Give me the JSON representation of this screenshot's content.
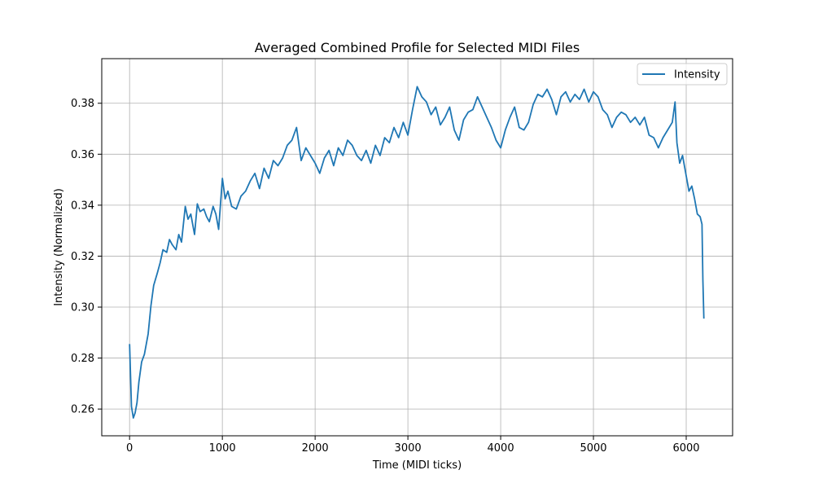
{
  "chart_data": {
    "type": "line",
    "title": "Averaged Combined Profile for Selected MIDI Files",
    "xlabel": "Time (MIDI ticks)",
    "ylabel": "Intensity (Normalized)",
    "xlim": [
      -300,
      6500
    ],
    "ylim": [
      0.2495,
      0.3975
    ],
    "x_ticks": [
      0,
      1000,
      2000,
      3000,
      4000,
      5000,
      6000
    ],
    "x_tick_labels": [
      "0",
      "1000",
      "2000",
      "3000",
      "4000",
      "5000",
      "6000"
    ],
    "y_ticks": [
      0.26,
      0.28,
      0.3,
      0.32,
      0.34,
      0.36,
      0.38
    ],
    "y_tick_labels": [
      "0.26",
      "0.28",
      "0.30",
      "0.32",
      "0.34",
      "0.36",
      "0.38"
    ],
    "grid": true,
    "legend_position": "top-right",
    "colors": {
      "series": "#1f77b4",
      "grid": "#b0b0b0"
    },
    "series": [
      {
        "name": "Intensity",
        "x": [
          0,
          20,
          40,
          60,
          80,
          100,
          130,
          160,
          200,
          230,
          260,
          300,
          330,
          360,
          400,
          430,
          460,
          500,
          530,
          560,
          600,
          630,
          660,
          700,
          730,
          760,
          800,
          830,
          860,
          900,
          930,
          960,
          1000,
          1030,
          1060,
          1100,
          1150,
          1200,
          1250,
          1300,
          1350,
          1400,
          1450,
          1500,
          1550,
          1600,
          1650,
          1700,
          1750,
          1800,
          1850,
          1900,
          1950,
          2000,
          2050,
          2100,
          2150,
          2200,
          2250,
          2300,
          2350,
          2400,
          2450,
          2500,
          2550,
          2600,
          2650,
          2700,
          2750,
          2800,
          2850,
          2900,
          2950,
          3000,
          3050,
          3100,
          3150,
          3200,
          3250,
          3300,
          3350,
          3400,
          3450,
          3500,
          3550,
          3600,
          3650,
          3700,
          3750,
          3800,
          3850,
          3900,
          3950,
          4000,
          4050,
          4100,
          4150,
          4200,
          4250,
          4300,
          4350,
          4400,
          4450,
          4500,
          4550,
          4600,
          4650,
          4700,
          4750,
          4800,
          4850,
          4900,
          4950,
          5000,
          5050,
          5100,
          5150,
          5200,
          5250,
          5300,
          5350,
          5400,
          5450,
          5500,
          5550,
          5600,
          5650,
          5700,
          5750,
          5800,
          5850,
          5880,
          5900,
          5930,
          5960,
          6000,
          6030,
          6060,
          6090,
          6120,
          6150,
          6170,
          6180,
          6190
        ],
        "values": [
          0.2855,
          0.261,
          0.2565,
          0.2585,
          0.2625,
          0.2705,
          0.2785,
          0.2815,
          0.2895,
          0.3005,
          0.3085,
          0.3135,
          0.3175,
          0.3225,
          0.3215,
          0.3265,
          0.3245,
          0.3225,
          0.3285,
          0.3255,
          0.3395,
          0.3345,
          0.3365,
          0.3285,
          0.3405,
          0.3375,
          0.3385,
          0.3355,
          0.3335,
          0.3395,
          0.3365,
          0.3305,
          0.3505,
          0.3425,
          0.3455,
          0.3395,
          0.3385,
          0.3435,
          0.3455,
          0.3495,
          0.3525,
          0.3465,
          0.3545,
          0.3505,
          0.3575,
          0.3555,
          0.3585,
          0.3635,
          0.3655,
          0.3705,
          0.3575,
          0.3625,
          0.3595,
          0.3565,
          0.3525,
          0.3585,
          0.3615,
          0.3555,
          0.3625,
          0.3595,
          0.3655,
          0.3635,
          0.3595,
          0.3575,
          0.3615,
          0.3565,
          0.3635,
          0.3595,
          0.3665,
          0.3645,
          0.3705,
          0.3665,
          0.3725,
          0.3675,
          0.3775,
          0.3865,
          0.3825,
          0.3805,
          0.3755,
          0.3785,
          0.3715,
          0.3745,
          0.3785,
          0.3695,
          0.3655,
          0.3735,
          0.3765,
          0.3775,
          0.3825,
          0.3785,
          0.3745,
          0.3705,
          0.3655,
          0.3625,
          0.3695,
          0.3745,
          0.3785,
          0.3705,
          0.3695,
          0.3725,
          0.3795,
          0.3835,
          0.3825,
          0.3855,
          0.3815,
          0.3755,
          0.3825,
          0.3845,
          0.3805,
          0.3835,
          0.3815,
          0.3855,
          0.3805,
          0.3845,
          0.3825,
          0.3775,
          0.3755,
          0.3705,
          0.3745,
          0.3765,
          0.3755,
          0.3725,
          0.3745,
          0.3715,
          0.3745,
          0.3675,
          0.3665,
          0.3625,
          0.3665,
          0.3695,
          0.3725,
          0.3805,
          0.3645,
          0.3565,
          0.3595,
          0.3515,
          0.3455,
          0.3475,
          0.3425,
          0.3365,
          0.3355,
          0.3325,
          0.3105,
          0.2955
        ]
      }
    ]
  }
}
